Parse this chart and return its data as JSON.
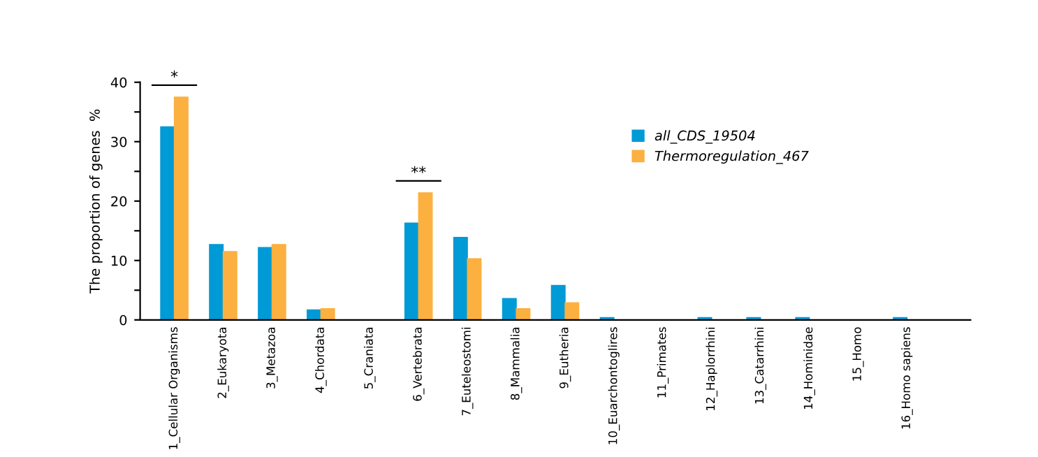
{
  "chart_data": {
    "type": "bar",
    "ylabel": "The proportion of genes  %",
    "categories": [
      "1_Cellular Organisms",
      "2_Eukaryota",
      "3_Metazoa",
      "4_Chordata",
      "5_Craniata",
      "6_Vertebrata",
      "7_Euteleostomi",
      "8_Mammalia",
      "9_Eutheria",
      "10_Euarchontoglires",
      "11_Primates",
      "12_Haplorrhini",
      "13_Catarrhini",
      "14_Hominidae",
      "15_Homo",
      "16_Homo sapiens"
    ],
    "series": [
      {
        "name": "all_CDS_19504",
        "color": "#009ad6",
        "values": [
          32.5,
          12.7,
          12.2,
          1.7,
          0,
          16.3,
          13.9,
          3.6,
          5.8,
          0.4,
          0,
          0.4,
          0.4,
          0.4,
          0,
          0.4
        ]
      },
      {
        "name": "Thermoregulation_467",
        "color": "#fbb040",
        "values": [
          37.5,
          11.5,
          12.7,
          1.9,
          0,
          21.4,
          10.3,
          1.9,
          2.9,
          0,
          0,
          0,
          0,
          0,
          0,
          0
        ]
      }
    ],
    "ylim": [
      0,
      40
    ],
    "yticks": [
      0,
      {
        "value": 5,
        "label": null
      },
      10,
      {
        "value": 15,
        "label": null
      },
      20,
      {
        "value": 25,
        "label": null
      },
      30,
      {
        "value": 35,
        "label": null
      },
      40
    ],
    "annotations": [
      "*",
      "**"
    ],
    "grid": false,
    "legend": "top right"
  }
}
